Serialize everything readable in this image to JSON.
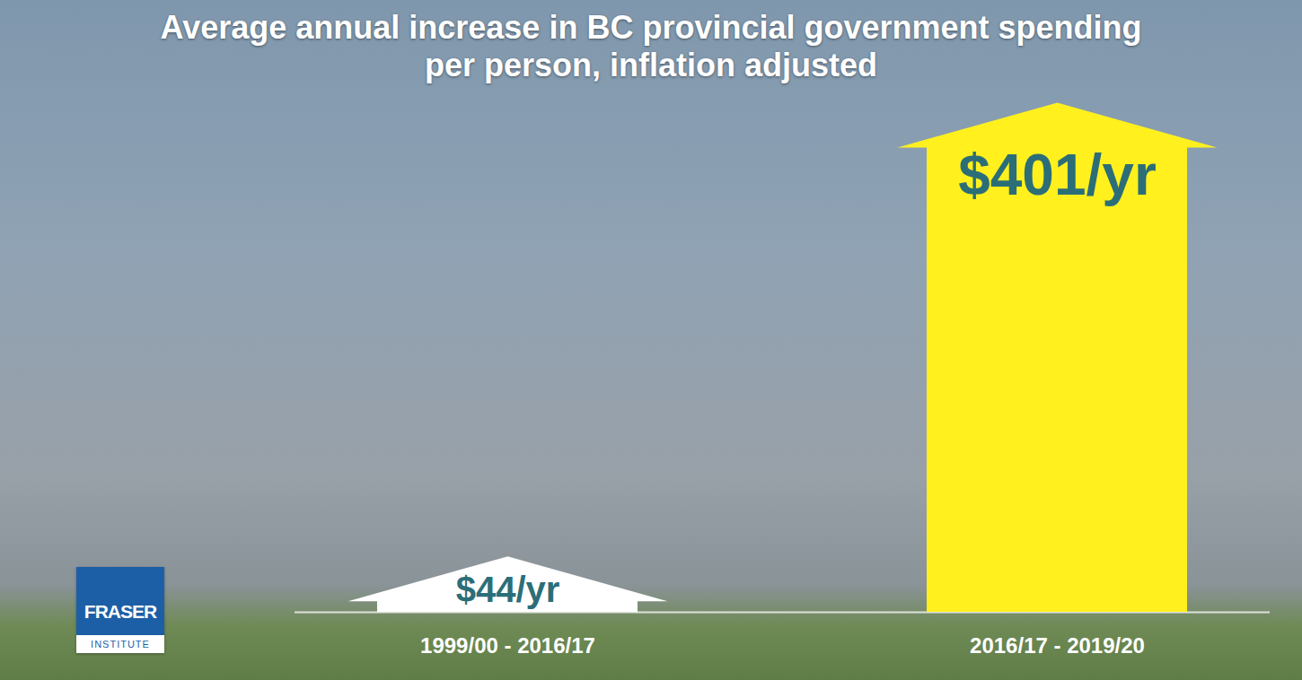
{
  "chart_data": {
    "type": "bar",
    "title": "Average annual increase in BC provincial government spending per person, inflation adjusted",
    "categories": [
      "1999/00 - 2016/17",
      "2016/17 - 2019/20"
    ],
    "values": [
      44,
      401
    ],
    "value_labels": [
      "$44/yr",
      "$401/yr"
    ],
    "colors": [
      "#ffffff",
      "#fff01e"
    ],
    "ylim": [
      0,
      401
    ],
    "data_labels": true,
    "tick_labels": "x",
    "grid": false
  },
  "logo": {
    "text": "FRASER",
    "subtext": "INSTITUTE"
  }
}
